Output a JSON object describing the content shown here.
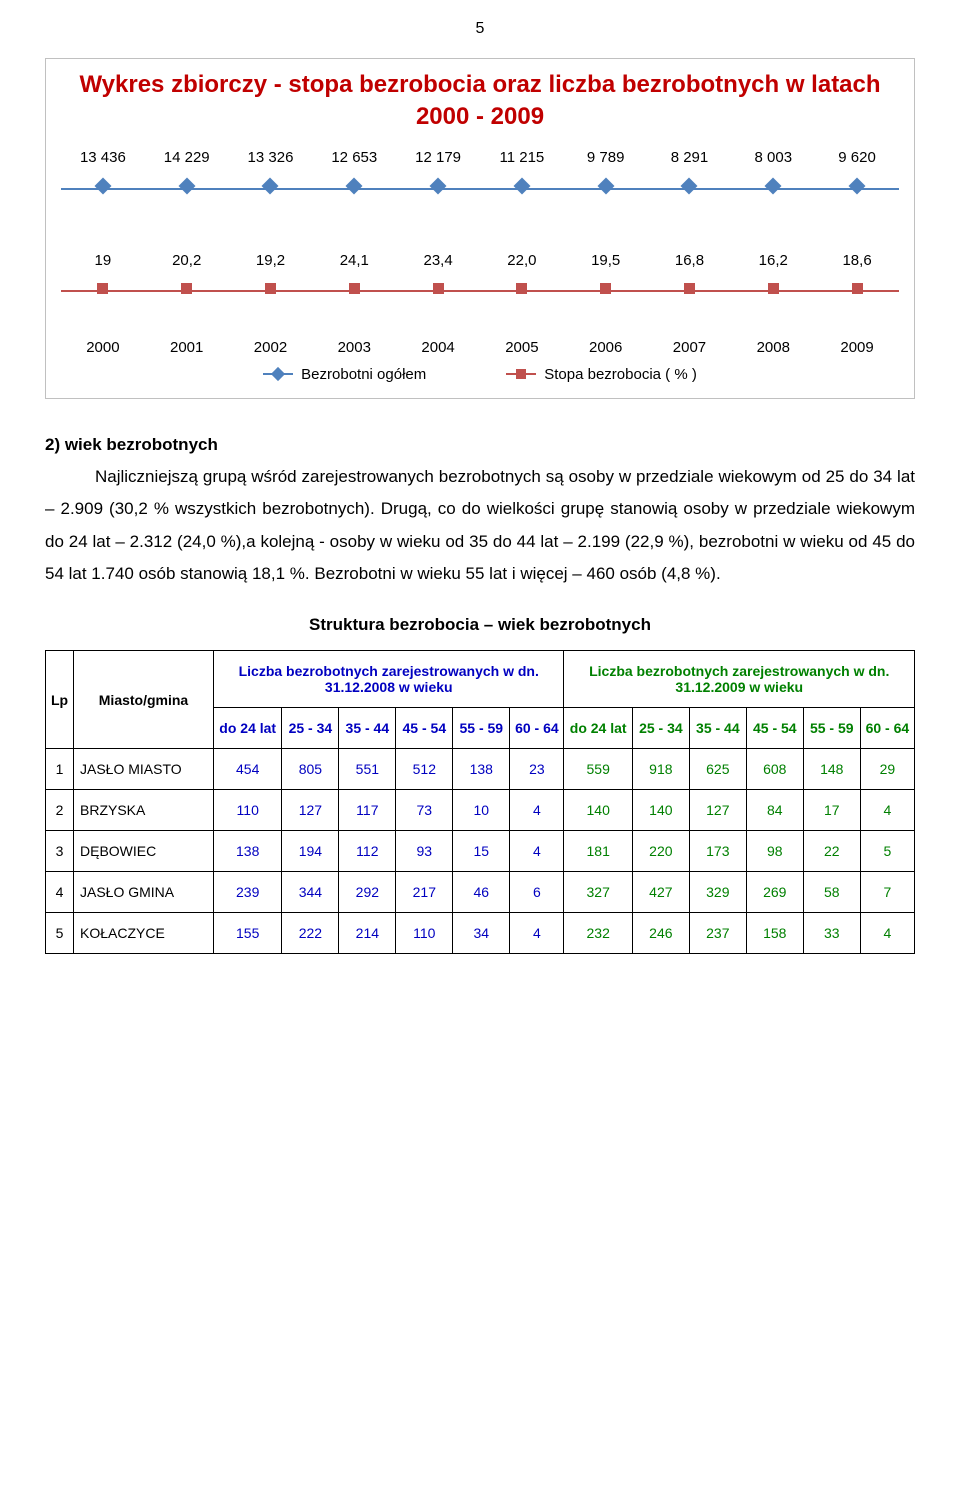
{
  "page_number": "5",
  "chart": {
    "title": "Wykres zbiorczy - stopa bezrobocia oraz liczba bezrobotnych w latach 2000 - 2009",
    "title_color": "#c00000",
    "years": [
      "2000",
      "2001",
      "2002",
      "2003",
      "2004",
      "2005",
      "2006",
      "2007",
      "2008",
      "2009"
    ],
    "series1": {
      "name": "Bezrobotni ogółem",
      "color": "#4f81bd",
      "values": [
        "13 436",
        "14 229",
        "13 326",
        "12 653",
        "12 179",
        "11 215",
        "9 789",
        "8 291",
        "8 003",
        "9 620"
      ]
    },
    "series2": {
      "name": "Stopa bezrobocia ( % )",
      "color": "#c0504d",
      "values": [
        "19",
        "20,2",
        "19,2",
        "24,1",
        "23,4",
        "22,0",
        "19,5",
        "16,8",
        "16,2",
        "18,6"
      ]
    }
  },
  "section_label": "2)  wiek bezrobotnych",
  "body_text": "Najliczniejszą grupą wśród zarejestrowanych bezrobotnych są osoby w przedziale wiekowym od 25 do 34 lat – 2.909 (30,2 % wszystkich bezrobotnych). Drugą, co do wielkości grupę stanowią osoby w przedziale wiekowym do 24 lat – 2.312 (24,0 %),a kolejną - osoby w wieku od 35 do 44 lat – 2.199 (22,9 %), bezrobotni w wieku od 45 do 54 lat 1.740 osób stanowią 18,1 %. Bezrobotni w wieku 55 lat i więcej – 460 osób (4,8 %).",
  "table": {
    "title": "Struktura bezrobocia – wiek bezrobotnych",
    "header_lp": "Lp",
    "header_gmina": "Miasto/gmina",
    "group1_label": "Liczba bezrobotnych zarejestrowanych w dn. 31.12.2008 w wieku",
    "group2_label": "Liczba bezrobotnych zarejestrowanych w dn. 31.12.2009 w  wieku",
    "col_labels": [
      "do 24 lat",
      "25 - 34",
      "35 - 44",
      "45 - 54",
      "55 - 59",
      "60 - 64"
    ],
    "rows": [
      {
        "lp": "1",
        "name": "JASŁO MIASTO",
        "a": [
          "454",
          "805",
          "551",
          "512",
          "138",
          "23"
        ],
        "b": [
          "559",
          "918",
          "625",
          "608",
          "148",
          "29"
        ]
      },
      {
        "lp": "2",
        "name": "BRZYSKA",
        "a": [
          "110",
          "127",
          "117",
          "73",
          "10",
          "4"
        ],
        "b": [
          "140",
          "140",
          "127",
          "84",
          "17",
          "4"
        ]
      },
      {
        "lp": "3",
        "name": "DĘBOWIEC",
        "a": [
          "138",
          "194",
          "112",
          "93",
          "15",
          "4"
        ],
        "b": [
          "181",
          "220",
          "173",
          "98",
          "22",
          "5"
        ]
      },
      {
        "lp": "4",
        "name": "JASŁO GMINA",
        "a": [
          "239",
          "344",
          "292",
          "217",
          "46",
          "6"
        ],
        "b": [
          "327",
          "427",
          "329",
          "269",
          "58",
          "7"
        ]
      },
      {
        "lp": "5",
        "name": "KOŁACZYCE",
        "a": [
          "155",
          "222",
          "214",
          "110",
          "34",
          "4"
        ],
        "b": [
          "232",
          "246",
          "237",
          "158",
          "33",
          "4"
        ]
      }
    ]
  },
  "colors": {
    "chart_title": "#c00000",
    "blue": "#0000c0",
    "green": "#008000",
    "series1": "#4f81bd",
    "series2": "#c0504d"
  }
}
